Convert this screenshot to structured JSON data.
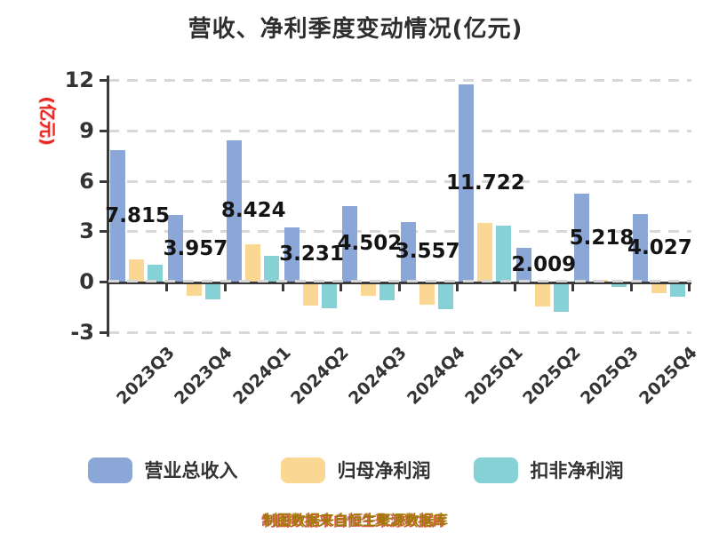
{
  "chart_data": {
    "type": "bar",
    "title": "营收、净利季度变动情况(亿元)",
    "ylabel": "(亿元)",
    "xlabel": "",
    "categories": [
      "2023Q3",
      "2023Q4",
      "2024Q1",
      "2024Q2",
      "2024Q3",
      "2024Q4",
      "2025Q1",
      "2025Q2",
      "2025Q3",
      "2025Q4"
    ],
    "series": [
      {
        "key": "total-revenue",
        "name": "营业总收入",
        "color": "#8BA7D7",
        "values": [
          7.815,
          3.957,
          8.424,
          3.231,
          4.502,
          3.557,
          11.722,
          2.009,
          5.218,
          4.027
        ]
      },
      {
        "key": "net-profit",
        "name": "归母净利润",
        "color": "#FAD793",
        "values": [
          1.3,
          -0.76,
          2.24,
          -1.34,
          -0.76,
          -1.25,
          3.47,
          -1.38,
          0.08,
          -0.56
        ]
      },
      {
        "key": "non-gaap-net-profit",
        "name": "扣非净利润",
        "color": "#85D1D6",
        "values": [
          1.0,
          -0.97,
          1.55,
          -1.47,
          -0.99,
          -1.56,
          3.33,
          -1.69,
          -0.21,
          -0.79
        ]
      }
    ],
    "value_labels": [
      "7.815",
      "3.957",
      "8.424",
      "3.231",
      "4.502",
      "3.557",
      "11.722",
      "2.009",
      "5.218",
      "4.027"
    ],
    "yticks": [
      12,
      9,
      6,
      3,
      0,
      -3
    ],
    "ylim": [
      -3,
      12
    ],
    "grid": "dashed-horizontal",
    "legend_position": "bottom"
  },
  "caption": "制图数据来自恒生聚源数据库",
  "colors": {
    "axis": "#3a3a3a",
    "gridline": "#d8d8d8",
    "title_text": "#2e2e2e",
    "unit_label": "#e8251f",
    "caption_text": "#9c7c05",
    "caption_shadow": "#d93025",
    "bar_blue": "#8BA7D7",
    "bar_yellow": "#FAD793",
    "bar_teal": "#85D1D6"
  }
}
